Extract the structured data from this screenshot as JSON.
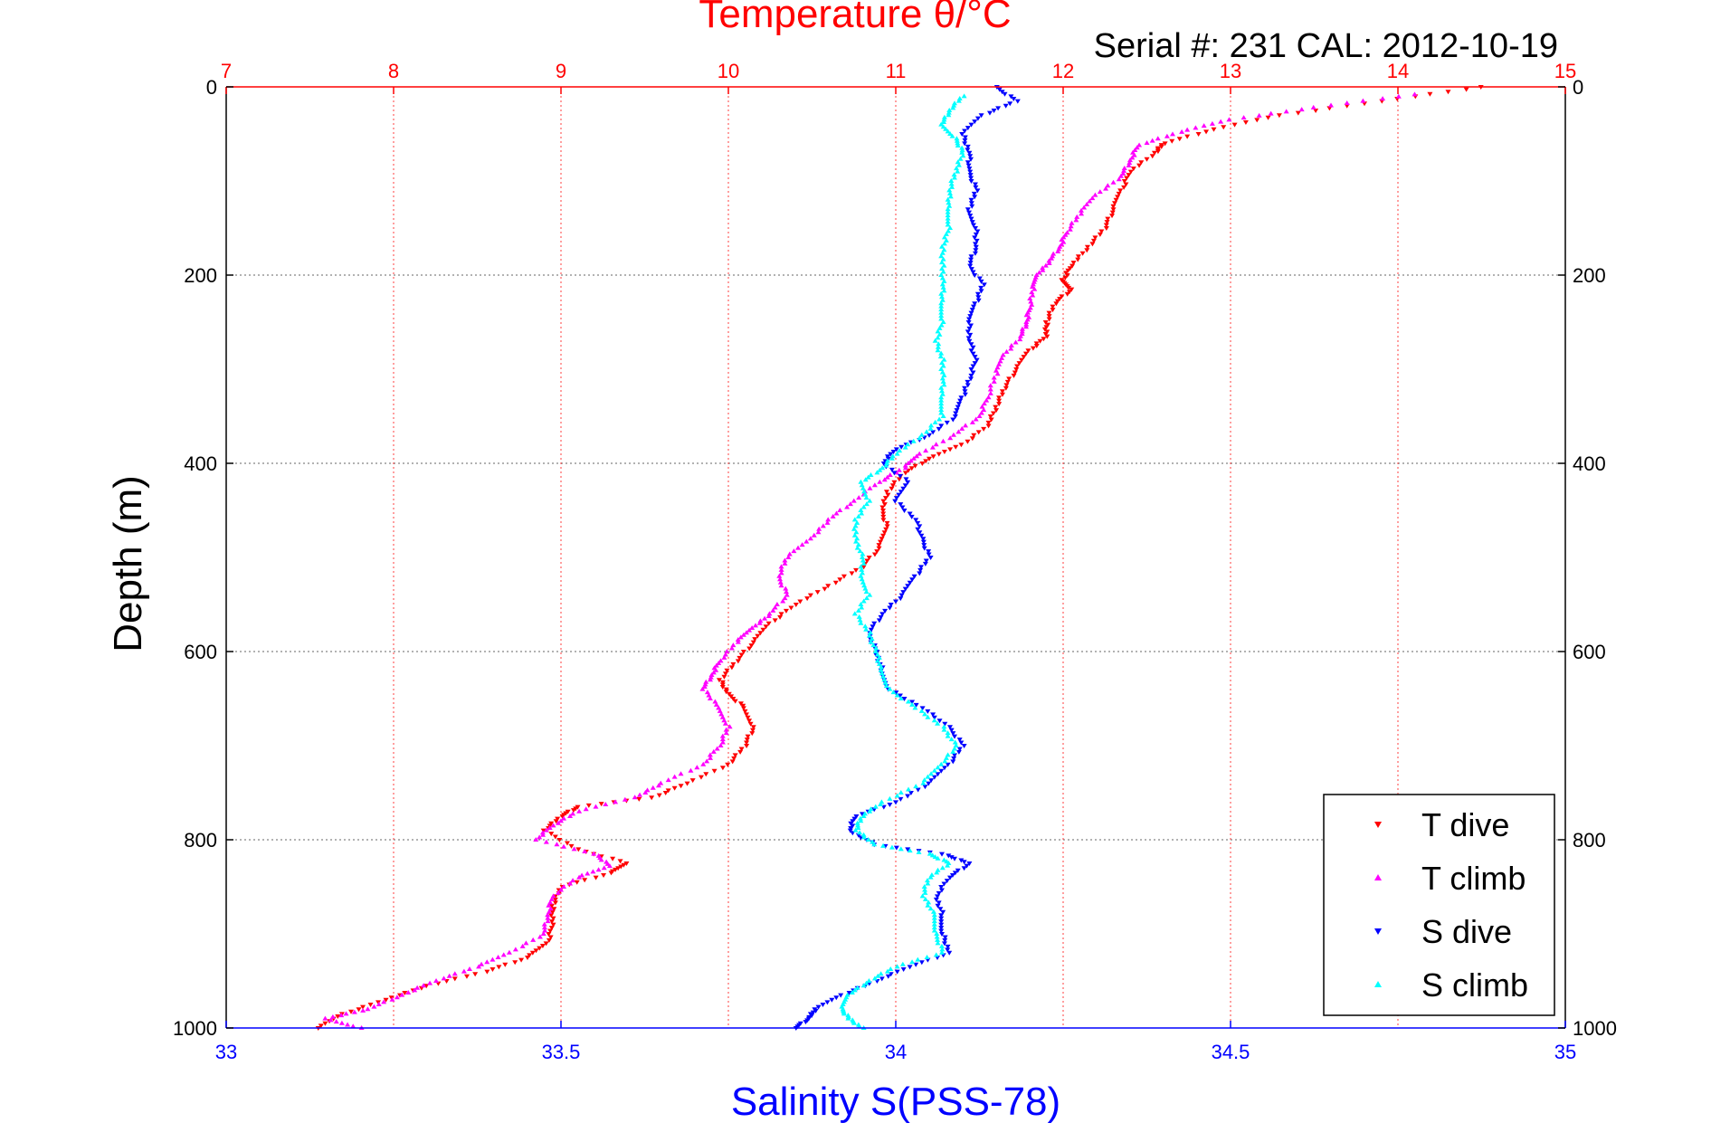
{
  "chart_data": {
    "type": "scatter",
    "title": "Temperature θ/°C",
    "subtitle": "Serial #: 231  CAL: 2012-10-19",
    "xlabel_bottom": "Salinity S(PSS-78)",
    "xlabel_top": "Temperature θ/°C",
    "ylabel": "Depth (m)",
    "xlim_bottom": [
      33,
      35
    ],
    "xlim_top": [
      7,
      15
    ],
    "ylim": [
      0,
      1000
    ],
    "y_reversed": true,
    "xticks_bottom": [
      "33",
      "33.5",
      "34",
      "34.5",
      "35"
    ],
    "xticks_top": [
      "7",
      "8",
      "9",
      "10",
      "11",
      "12",
      "13",
      "14",
      "15"
    ],
    "yticks_left": [
      "0",
      "200",
      "400",
      "600",
      "800",
      "1000"
    ],
    "yticks_right": [
      "0",
      "200",
      "400",
      "600",
      "800",
      "1000"
    ],
    "grid": true,
    "legend_position": "bottom-right",
    "colors": {
      "t_axis": "#ff0000",
      "s_axis": "#0000ff",
      "t_dive": "#ff0000",
      "t_climb": "#ff00ff",
      "s_dive": "#0000ff",
      "s_climb": "#00ffff"
    },
    "series": [
      {
        "name": "T dive",
        "axis": "temperature",
        "marker": "down-triangle",
        "color": "#ff0000",
        "points": [
          [
            14.5,
            0
          ],
          [
            13.9,
            15
          ],
          [
            13.3,
            30
          ],
          [
            12.9,
            45
          ],
          [
            12.6,
            60
          ],
          [
            12.55,
            70
          ],
          [
            12.4,
            90
          ],
          [
            12.35,
            110
          ],
          [
            12.3,
            130
          ],
          [
            12.25,
            150
          ],
          [
            12.15,
            170
          ],
          [
            12.05,
            190
          ],
          [
            12.0,
            205
          ],
          [
            12.05,
            215
          ],
          [
            11.95,
            230
          ],
          [
            11.9,
            250
          ],
          [
            11.9,
            265
          ],
          [
            11.8,
            280
          ],
          [
            11.72,
            300
          ],
          [
            11.65,
            320
          ],
          [
            11.6,
            340
          ],
          [
            11.55,
            360
          ],
          [
            11.4,
            380
          ],
          [
            11.2,
            395
          ],
          [
            11.05,
            410
          ],
          [
            10.95,
            430
          ],
          [
            10.92,
            450
          ],
          [
            10.95,
            470
          ],
          [
            10.9,
            490
          ],
          [
            10.8,
            510
          ],
          [
            10.6,
            530
          ],
          [
            10.4,
            550
          ],
          [
            10.25,
            570
          ],
          [
            10.15,
            590
          ],
          [
            10.05,
            610
          ],
          [
            9.95,
            630
          ],
          [
            10.0,
            645
          ],
          [
            10.1,
            660
          ],
          [
            10.15,
            680
          ],
          [
            10.1,
            700
          ],
          [
            10.0,
            720
          ],
          [
            9.75,
            740
          ],
          [
            9.55,
            755
          ],
          [
            9.1,
            765
          ],
          [
            9.0,
            775
          ],
          [
            8.9,
            790
          ],
          [
            9.1,
            810
          ],
          [
            9.4,
            825
          ],
          [
            9.3,
            835
          ],
          [
            9.0,
            850
          ],
          [
            8.95,
            870
          ],
          [
            8.95,
            890
          ],
          [
            8.92,
            910
          ],
          [
            8.8,
            925
          ],
          [
            8.55,
            940
          ],
          [
            8.2,
            955
          ],
          [
            7.95,
            970
          ],
          [
            7.7,
            985
          ],
          [
            7.55,
            1000
          ]
        ]
      },
      {
        "name": "T climb",
        "axis": "temperature",
        "marker": "up-triangle",
        "color": "#ff00ff",
        "points": [
          [
            14.1,
            8
          ],
          [
            13.5,
            22
          ],
          [
            13.0,
            35
          ],
          [
            12.7,
            48
          ],
          [
            12.45,
            62
          ],
          [
            12.4,
            78
          ],
          [
            12.35,
            95
          ],
          [
            12.2,
            115
          ],
          [
            12.1,
            135
          ],
          [
            12.02,
            155
          ],
          [
            11.98,
            170
          ],
          [
            11.92,
            185
          ],
          [
            11.85,
            200
          ],
          [
            11.82,
            215
          ],
          [
            11.8,
            235
          ],
          [
            11.78,
            250
          ],
          [
            11.75,
            265
          ],
          [
            11.65,
            285
          ],
          [
            11.6,
            305
          ],
          [
            11.55,
            330
          ],
          [
            11.5,
            350
          ],
          [
            11.35,
            370
          ],
          [
            11.15,
            390
          ],
          [
            11.05,
            405
          ],
          [
            10.9,
            420
          ],
          [
            10.75,
            440
          ],
          [
            10.6,
            460
          ],
          [
            10.5,
            480
          ],
          [
            10.35,
            500
          ],
          [
            10.3,
            520
          ],
          [
            10.35,
            540
          ],
          [
            10.25,
            560
          ],
          [
            10.15,
            575
          ],
          [
            10.05,
            590
          ],
          [
            9.95,
            610
          ],
          [
            9.9,
            625
          ],
          [
            9.85,
            640
          ],
          [
            9.95,
            660
          ],
          [
            10.0,
            680
          ],
          [
            9.95,
            700
          ],
          [
            9.85,
            720
          ],
          [
            9.6,
            740
          ],
          [
            9.45,
            755
          ],
          [
            9.1,
            770
          ],
          [
            8.95,
            785
          ],
          [
            8.85,
            800
          ],
          [
            9.2,
            815
          ],
          [
            9.3,
            828
          ],
          [
            9.1,
            840
          ],
          [
            8.95,
            860
          ],
          [
            8.92,
            880
          ],
          [
            8.9,
            900
          ],
          [
            8.7,
            920
          ],
          [
            8.5,
            935
          ],
          [
            8.25,
            950
          ],
          [
            8.05,
            965
          ],
          [
            7.85,
            980
          ],
          [
            7.6,
            990
          ],
          [
            7.8,
            1000
          ]
        ]
      },
      {
        "name": "S dive",
        "axis": "salinity",
        "marker": "down-triangle",
        "color": "#0000ff",
        "points": [
          [
            34.15,
            0
          ],
          [
            34.18,
            15
          ],
          [
            34.13,
            30
          ],
          [
            34.1,
            50
          ],
          [
            34.11,
            70
          ],
          [
            34.11,
            90
          ],
          [
            34.12,
            110
          ],
          [
            34.11,
            130
          ],
          [
            34.12,
            150
          ],
          [
            34.12,
            170
          ],
          [
            34.11,
            190
          ],
          [
            34.13,
            210
          ],
          [
            34.12,
            230
          ],
          [
            34.11,
            250
          ],
          [
            34.11,
            270
          ],
          [
            34.12,
            290
          ],
          [
            34.11,
            310
          ],
          [
            34.1,
            330
          ],
          [
            34.09,
            350
          ],
          [
            34.05,
            370
          ],
          [
            34.0,
            385
          ],
          [
            33.98,
            400
          ],
          [
            34.02,
            420
          ],
          [
            34.0,
            440
          ],
          [
            34.03,
            460
          ],
          [
            34.04,
            480
          ],
          [
            34.05,
            500
          ],
          [
            34.03,
            520
          ],
          [
            34.01,
            540
          ],
          [
            33.98,
            560
          ],
          [
            33.96,
            580
          ],
          [
            33.97,
            600
          ],
          [
            33.98,
            620
          ],
          [
            33.99,
            640
          ],
          [
            34.04,
            660
          ],
          [
            34.08,
            680
          ],
          [
            34.1,
            700
          ],
          [
            34.08,
            720
          ],
          [
            34.05,
            740
          ],
          [
            34.0,
            760
          ],
          [
            33.94,
            775
          ],
          [
            33.93,
            790
          ],
          [
            33.97,
            805
          ],
          [
            34.07,
            815
          ],
          [
            34.11,
            825
          ],
          [
            34.08,
            840
          ],
          [
            34.06,
            860
          ],
          [
            34.07,
            880
          ],
          [
            34.07,
            900
          ],
          [
            34.08,
            920
          ],
          [
            34.02,
            935
          ],
          [
            33.97,
            950
          ],
          [
            33.92,
            965
          ],
          [
            33.88,
            980
          ],
          [
            33.87,
            990
          ],
          [
            33.85,
            1000
          ]
        ]
      },
      {
        "name": "S climb",
        "axis": "salinity",
        "marker": "up-triangle",
        "color": "#00ffff",
        "points": [
          [
            34.1,
            10
          ],
          [
            34.08,
            25
          ],
          [
            34.07,
            40
          ],
          [
            34.09,
            55
          ],
          [
            34.1,
            70
          ],
          [
            34.09,
            90
          ],
          [
            34.08,
            110
          ],
          [
            34.08,
            130
          ],
          [
            34.08,
            150
          ],
          [
            34.07,
            170
          ],
          [
            34.07,
            190
          ],
          [
            34.07,
            210
          ],
          [
            34.07,
            230
          ],
          [
            34.07,
            250
          ],
          [
            34.06,
            270
          ],
          [
            34.07,
            290
          ],
          [
            34.07,
            310
          ],
          [
            34.07,
            330
          ],
          [
            34.07,
            350
          ],
          [
            34.04,
            370
          ],
          [
            34.0,
            390
          ],
          [
            33.98,
            405
          ],
          [
            33.95,
            420
          ],
          [
            33.96,
            440
          ],
          [
            33.94,
            460
          ],
          [
            33.94,
            480
          ],
          [
            33.95,
            500
          ],
          [
            33.95,
            520
          ],
          [
            33.96,
            540
          ],
          [
            33.94,
            560
          ],
          [
            33.96,
            580
          ],
          [
            33.97,
            600
          ],
          [
            33.98,
            620
          ],
          [
            33.99,
            640
          ],
          [
            34.03,
            660
          ],
          [
            34.07,
            680
          ],
          [
            34.09,
            700
          ],
          [
            34.07,
            720
          ],
          [
            34.04,
            740
          ],
          [
            33.98,
            760
          ],
          [
            33.95,
            775
          ],
          [
            33.94,
            790
          ],
          [
            33.97,
            805
          ],
          [
            34.05,
            815
          ],
          [
            34.08,
            825
          ],
          [
            34.05,
            840
          ],
          [
            34.04,
            860
          ],
          [
            34.06,
            880
          ],
          [
            34.06,
            900
          ],
          [
            34.07,
            920
          ],
          [
            34.0,
            935
          ],
          [
            33.96,
            950
          ],
          [
            33.93,
            965
          ],
          [
            33.92,
            980
          ],
          [
            33.93,
            990
          ],
          [
            33.95,
            1000
          ]
        ]
      }
    ]
  }
}
